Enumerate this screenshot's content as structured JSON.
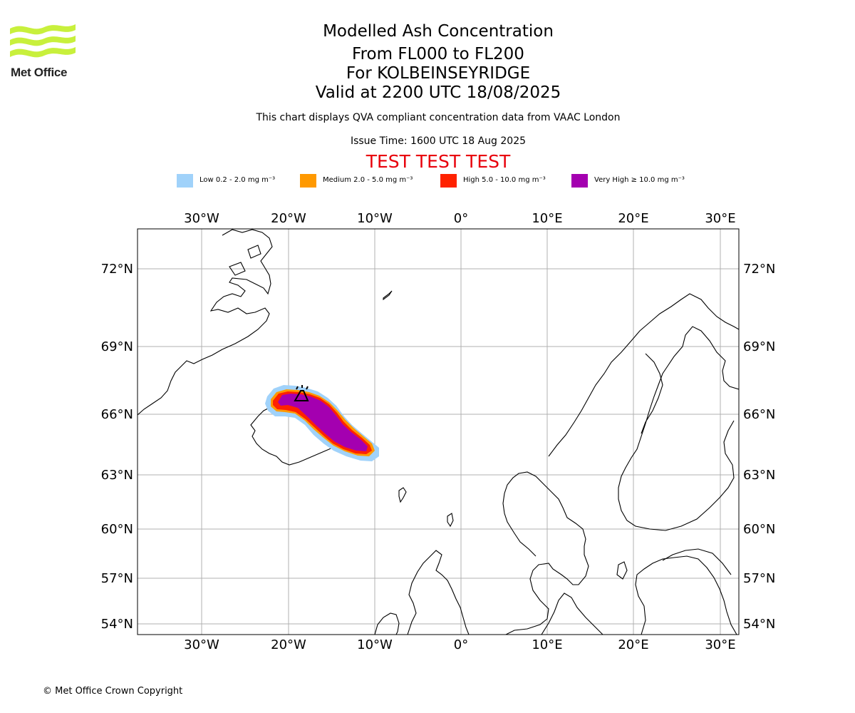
{
  "brand": {
    "name": "Met Office",
    "logo_color": "#c8f03c"
  },
  "header": {
    "title": "Modelled Ash Concentration",
    "level_range": "From FL000 to FL200",
    "location": "For KOLBEINSEYRIDGE",
    "valid_time": "Valid at 2200 UTC 18/08/2025",
    "description": "This chart displays QVA compliant concentration data from VAAC London",
    "issue_time": "Issue Time: 1600 UTC 18 Aug 2025",
    "banner": "TEST TEST TEST",
    "banner_color": "#e8000b"
  },
  "legend": [
    {
      "label": "Low 0.2 - 2.0 mg m⁻³",
      "color": "#a0d2fa"
    },
    {
      "label": "Medium 2.0 - 5.0 mg m⁻³",
      "color": "#ff9900"
    },
    {
      "label": "High 5.0 - 10.0 mg m⁻³",
      "color": "#ff2200"
    },
    {
      "label": "Very High ≥ 10.0 mg m⁻³",
      "color": "#a400b0"
    }
  ],
  "map": {
    "lon_ticks": [
      "30°W",
      "20°W",
      "10°W",
      "0°",
      "10°E",
      "20°E",
      "30°E"
    ],
    "lat_ticks": [
      "72°N",
      "69°N",
      "66°N",
      "63°N",
      "60°N",
      "57°N",
      "54°N"
    ],
    "grid": true
  },
  "footer": {
    "copyright": "© Met Office Crown Copyright"
  }
}
